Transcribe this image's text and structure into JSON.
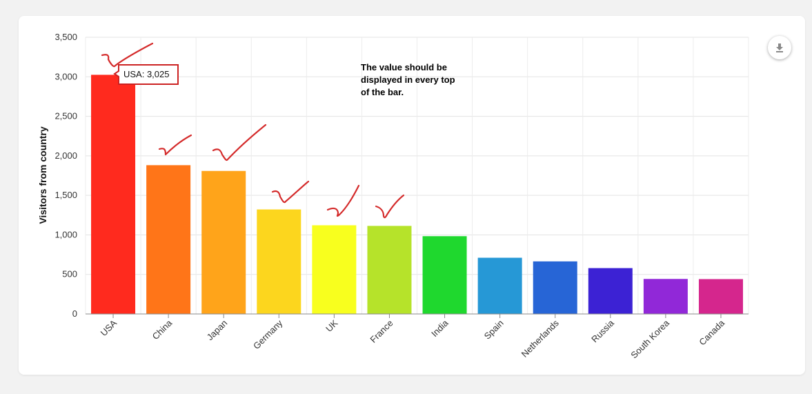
{
  "chart_data": {
    "type": "bar",
    "categories": [
      "USA",
      "China",
      "Japan",
      "Germany",
      "UK",
      "France",
      "India",
      "Spain",
      "Netherlands",
      "Russia",
      "South Korea",
      "Canada"
    ],
    "values": [
      3025,
      1882,
      1809,
      1322,
      1122,
      1114,
      984,
      711,
      665,
      580,
      443,
      441
    ],
    "colors": [
      "#ff2a1e",
      "#ff7518",
      "#ffa41a",
      "#fcd61e",
      "#f8ff1e",
      "#b6e32a",
      "#1fd82e",
      "#2698d6",
      "#2765d6",
      "#3c22d4",
      "#9128d8",
      "#d5268d"
    ],
    "xlabel": "",
    "ylabel": "Visitors from country",
    "ylim": [
      0,
      3500
    ],
    "yticks": [
      "0",
      "500",
      "1,000",
      "1,500",
      "2,000",
      "2,500",
      "3,000",
      "3,500"
    ],
    "grid": true,
    "tooltip": "USA: 3,025",
    "annotation": [
      "The value should be",
      "displayed in every top",
      "of the bar."
    ]
  },
  "toolbar": {
    "download_icon": "download-icon"
  }
}
